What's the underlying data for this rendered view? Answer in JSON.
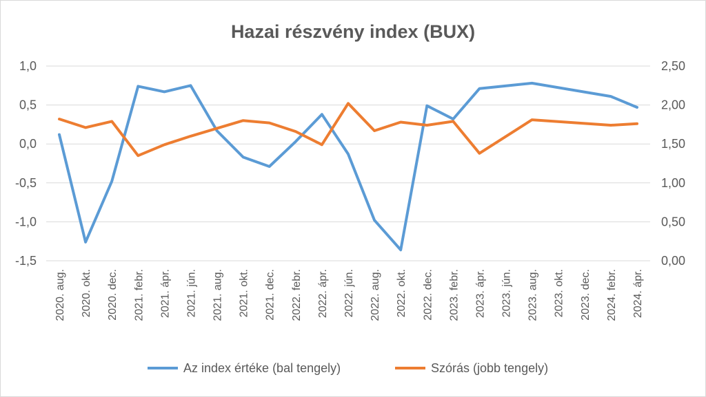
{
  "chart_data": {
    "type": "line",
    "title": "Hazai részvény index (BUX)",
    "categories": [
      "2020. aug.",
      "2020. okt.",
      "2020. dec.",
      "2021. febr.",
      "2021. ápr.",
      "2021. jún.",
      "2021. aug.",
      "2021. okt.",
      "2021. dec.",
      "2022. febr.",
      "2022. ápr.",
      "2022. jún.",
      "2022. aug.",
      "2022. okt.",
      "2022. dec.",
      "2023. febr.",
      "2023. ápr.",
      "2023. jún.",
      "2023. aug.",
      "2023. okt.",
      "2023. dec.",
      "2024. febr.",
      "2024. ápr."
    ],
    "left_axis": {
      "ylim": [
        -1.5,
        1.0
      ],
      "ticks": [
        "1,0",
        "0,5",
        "0,0",
        "-0,5",
        "-1,0",
        "-1,5"
      ],
      "tick_values": [
        1.0,
        0.5,
        0.0,
        -0.5,
        -1.0,
        -1.5
      ]
    },
    "right_axis": {
      "ylim": [
        0.0,
        2.5
      ],
      "ticks": [
        "2,50",
        "2,00",
        "1,50",
        "1,00",
        "0,50",
        "0,00"
      ],
      "tick_values": [
        2.5,
        2.0,
        1.5,
        1.0,
        0.5,
        0.0
      ]
    },
    "grid": true,
    "legend_position": "bottom",
    "series": [
      {
        "name": "Az index értéke (bal tengely)",
        "axis": "left",
        "color": "#5b9bd5",
        "values": [
          0.12,
          -1.26,
          -0.48,
          0.74,
          0.67,
          0.75,
          0.17,
          -0.17,
          -0.29,
          0.03,
          0.38,
          -0.13,
          -0.98,
          -1.36,
          0.49,
          0.32,
          0.71,
          null,
          0.78,
          null,
          null,
          0.61,
          0.47
        ]
      },
      {
        "name": "Szórás (jobb tengely)",
        "axis": "right",
        "color": "#ed7d31",
        "values": [
          1.82,
          1.71,
          1.79,
          1.35,
          1.49,
          1.6,
          null,
          1.8,
          1.77,
          1.66,
          1.49,
          2.02,
          1.67,
          1.78,
          1.74,
          1.79,
          1.38,
          null,
          1.81,
          null,
          null,
          1.74,
          1.76
        ]
      }
    ]
  }
}
